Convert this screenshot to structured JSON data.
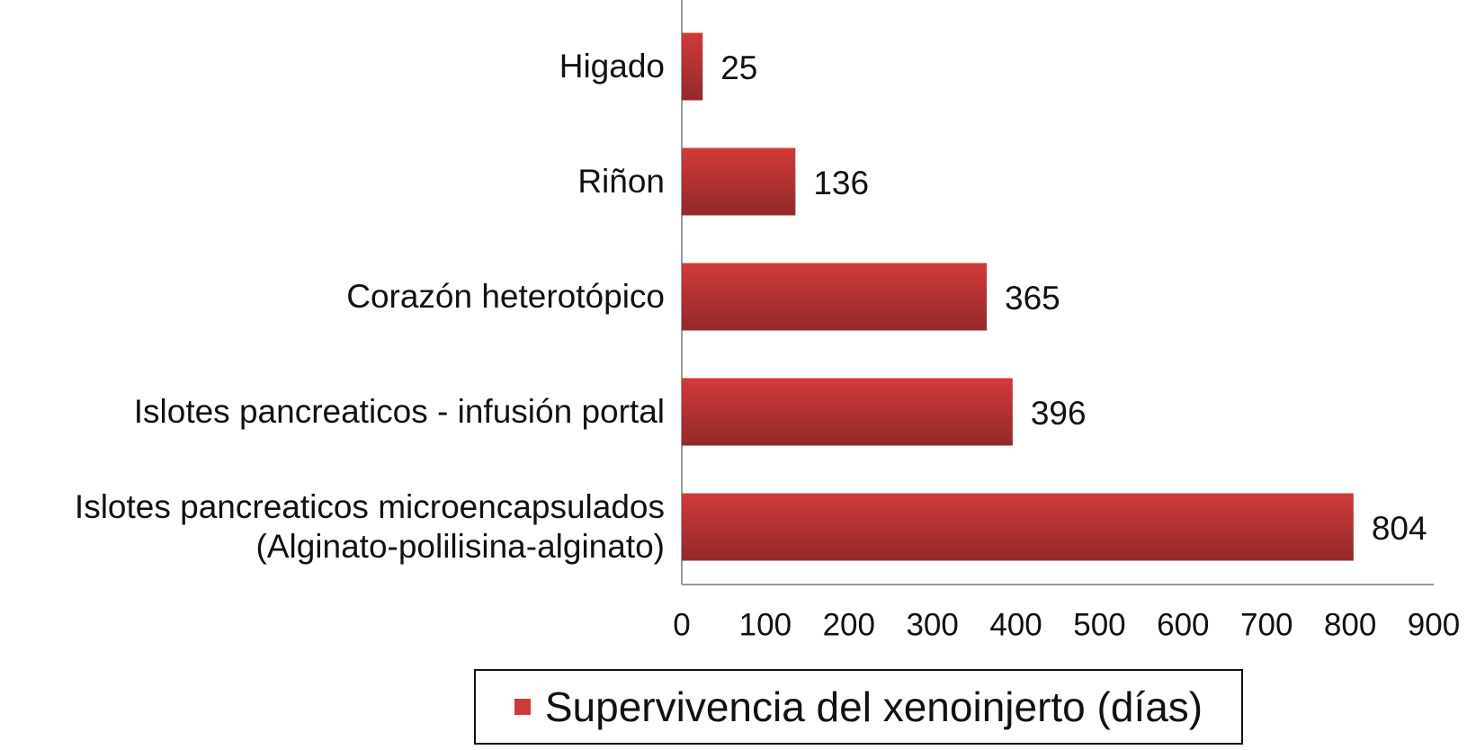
{
  "chart_data": {
    "type": "hbar",
    "categories": [
      "Higado",
      "Riñon",
      "Corazón heterotópico",
      "Islotes pancreaticos - infusión portal",
      "Islotes pancreaticos microencapsulados\n(Alginato-polilisina-alginato)"
    ],
    "series": [
      {
        "name": "Supervivencia del xenoinjerto (días)",
        "color": "#d13a3a",
        "values": [
          25,
          136,
          365,
          396,
          804
        ]
      }
    ],
    "xlim": [
      0,
      900
    ],
    "xticks": [
      0,
      100,
      200,
      300,
      400,
      500,
      600,
      700,
      800,
      900
    ],
    "legend": "bottom"
  }
}
